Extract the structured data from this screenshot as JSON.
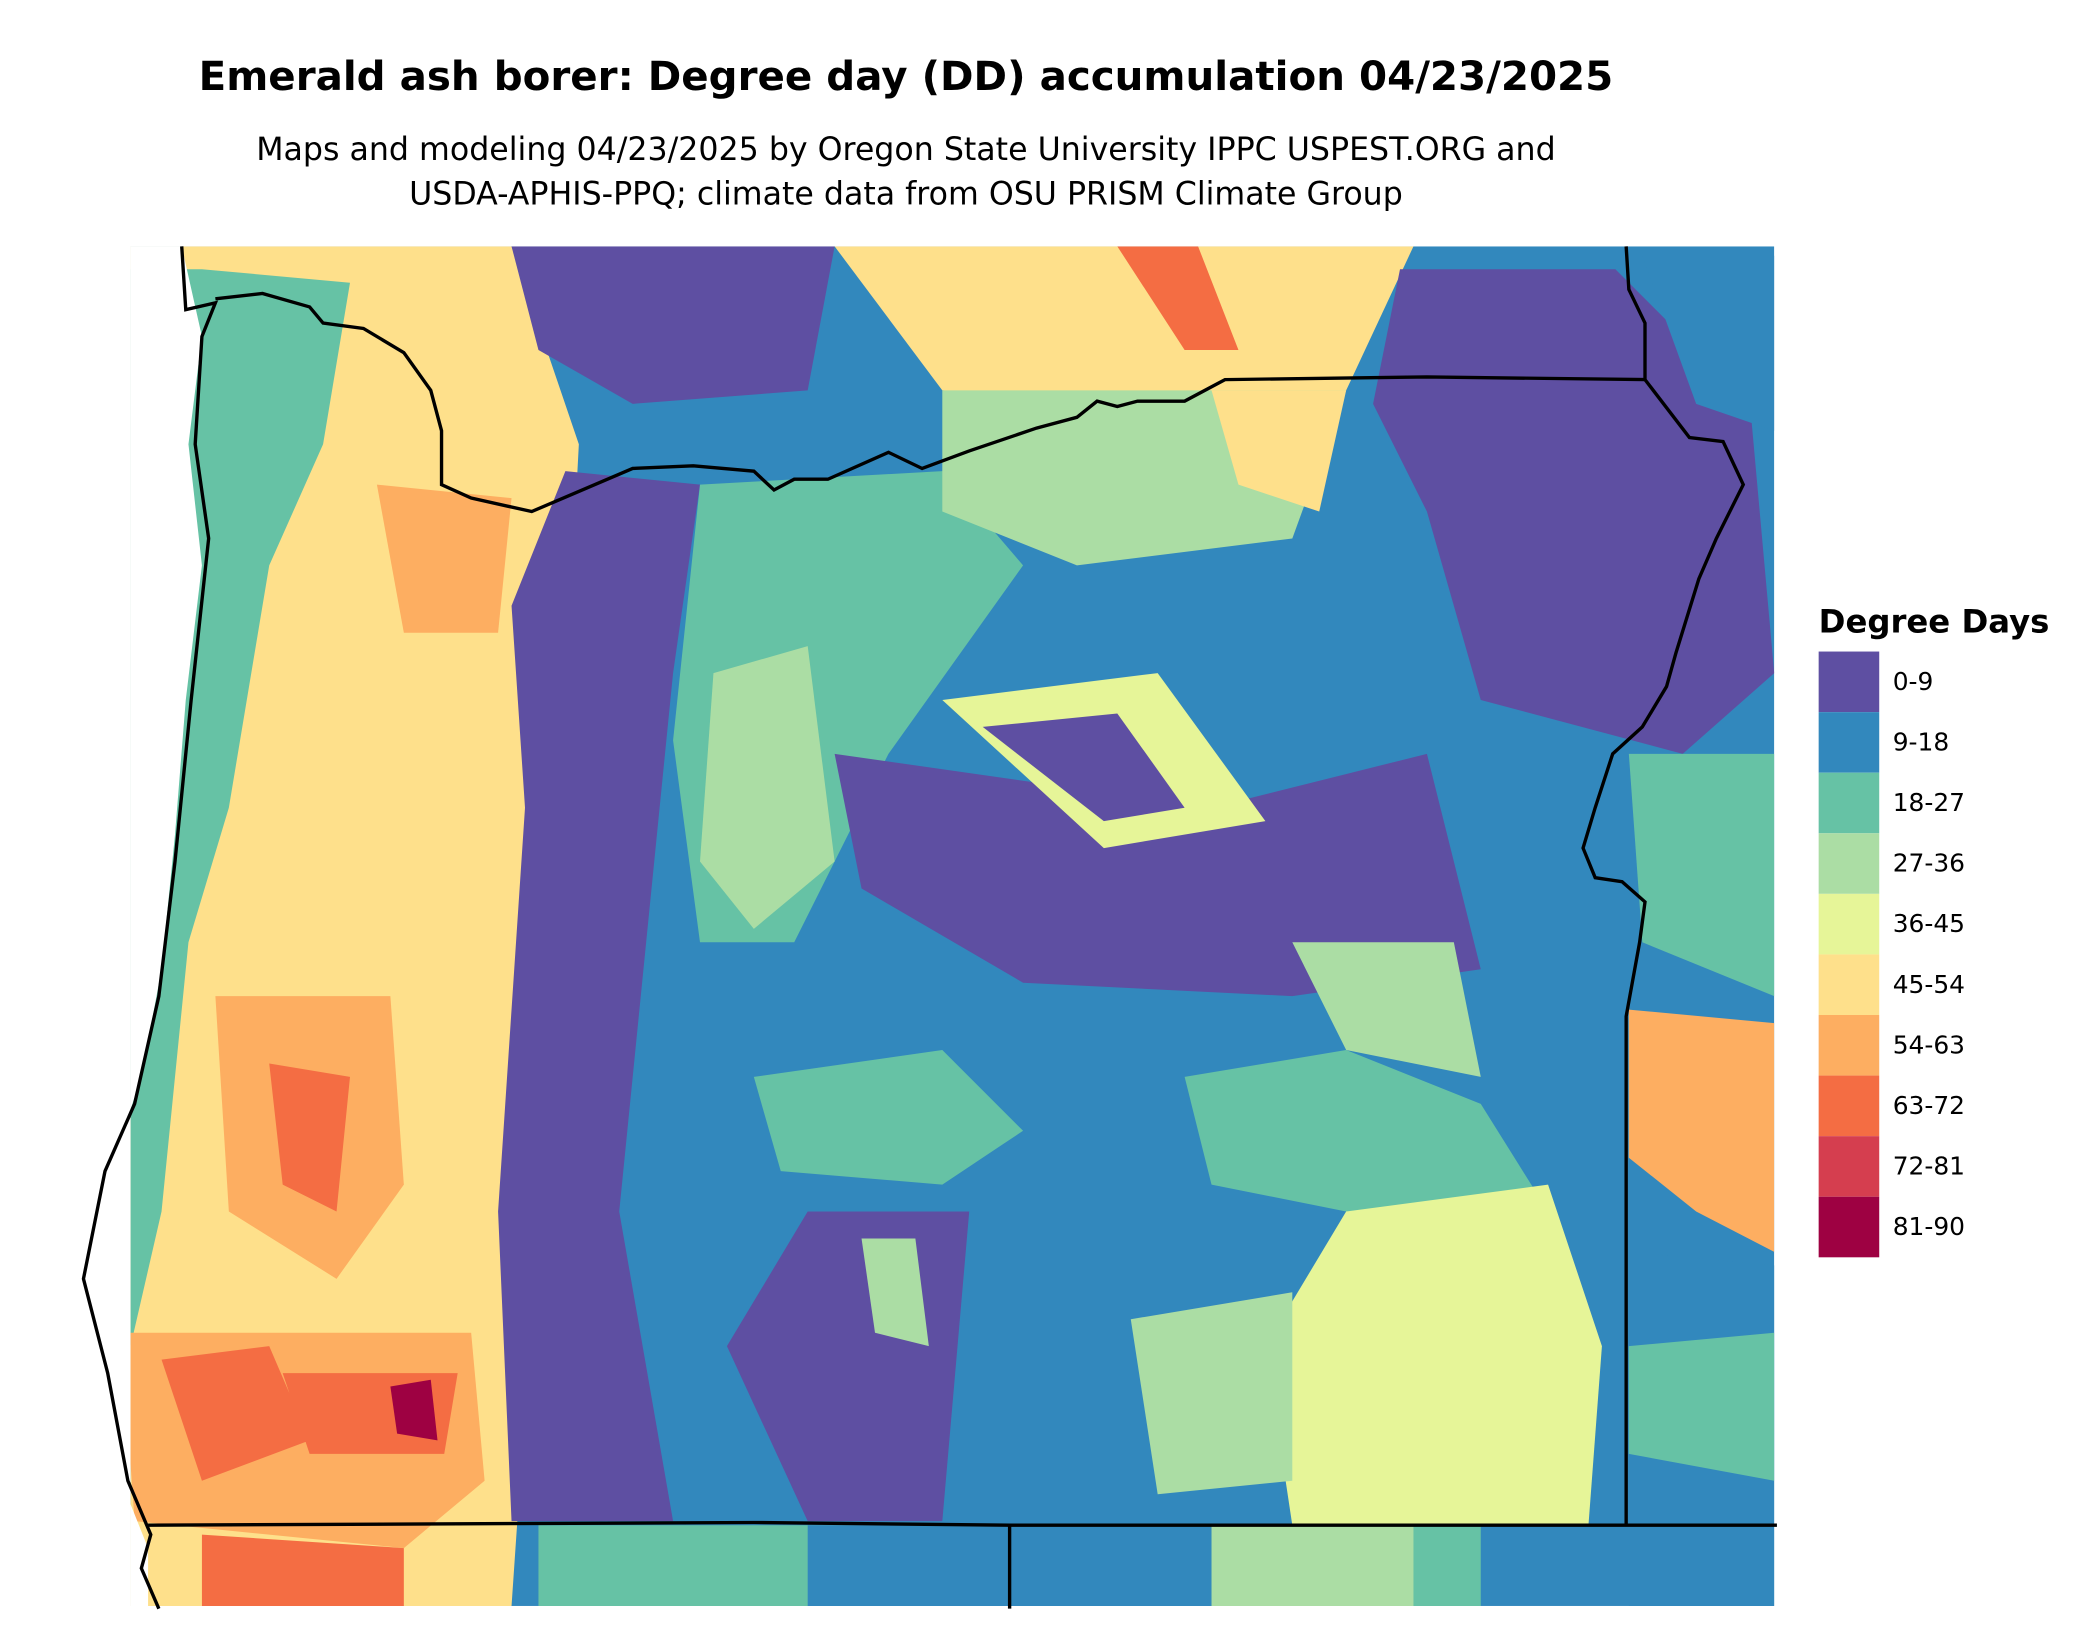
{
  "title": "Emerald ash borer: Degree day (DD) accumulation 04/23/2025",
  "subtitle_lines": [
    "Maps and modeling 04/23/2025 by Oregon State University IPPC USPEST.ORG and",
    "USDA-APHIS-PPQ; climate data from OSU PRISM Climate Group"
  ],
  "legend": {
    "title": "Degree Days",
    "items": [
      {
        "label": "0-9",
        "color": "#5e4fa2"
      },
      {
        "label": "9-18",
        "color": "#3288bd"
      },
      {
        "label": "18-27",
        "color": "#66c2a5"
      },
      {
        "label": "27-36",
        "color": "#abdda4"
      },
      {
        "label": "36-45",
        "color": "#e6f598"
      },
      {
        "label": "45-54",
        "color": "#fee08b"
      },
      {
        "label": "54-63",
        "color": "#fdae61"
      },
      {
        "label": "63-72",
        "color": "#f46d43"
      },
      {
        "label": "72-81",
        "color": "#d53e4f"
      },
      {
        "label": "81-90",
        "color": "#9e0142"
      }
    ]
  }
}
